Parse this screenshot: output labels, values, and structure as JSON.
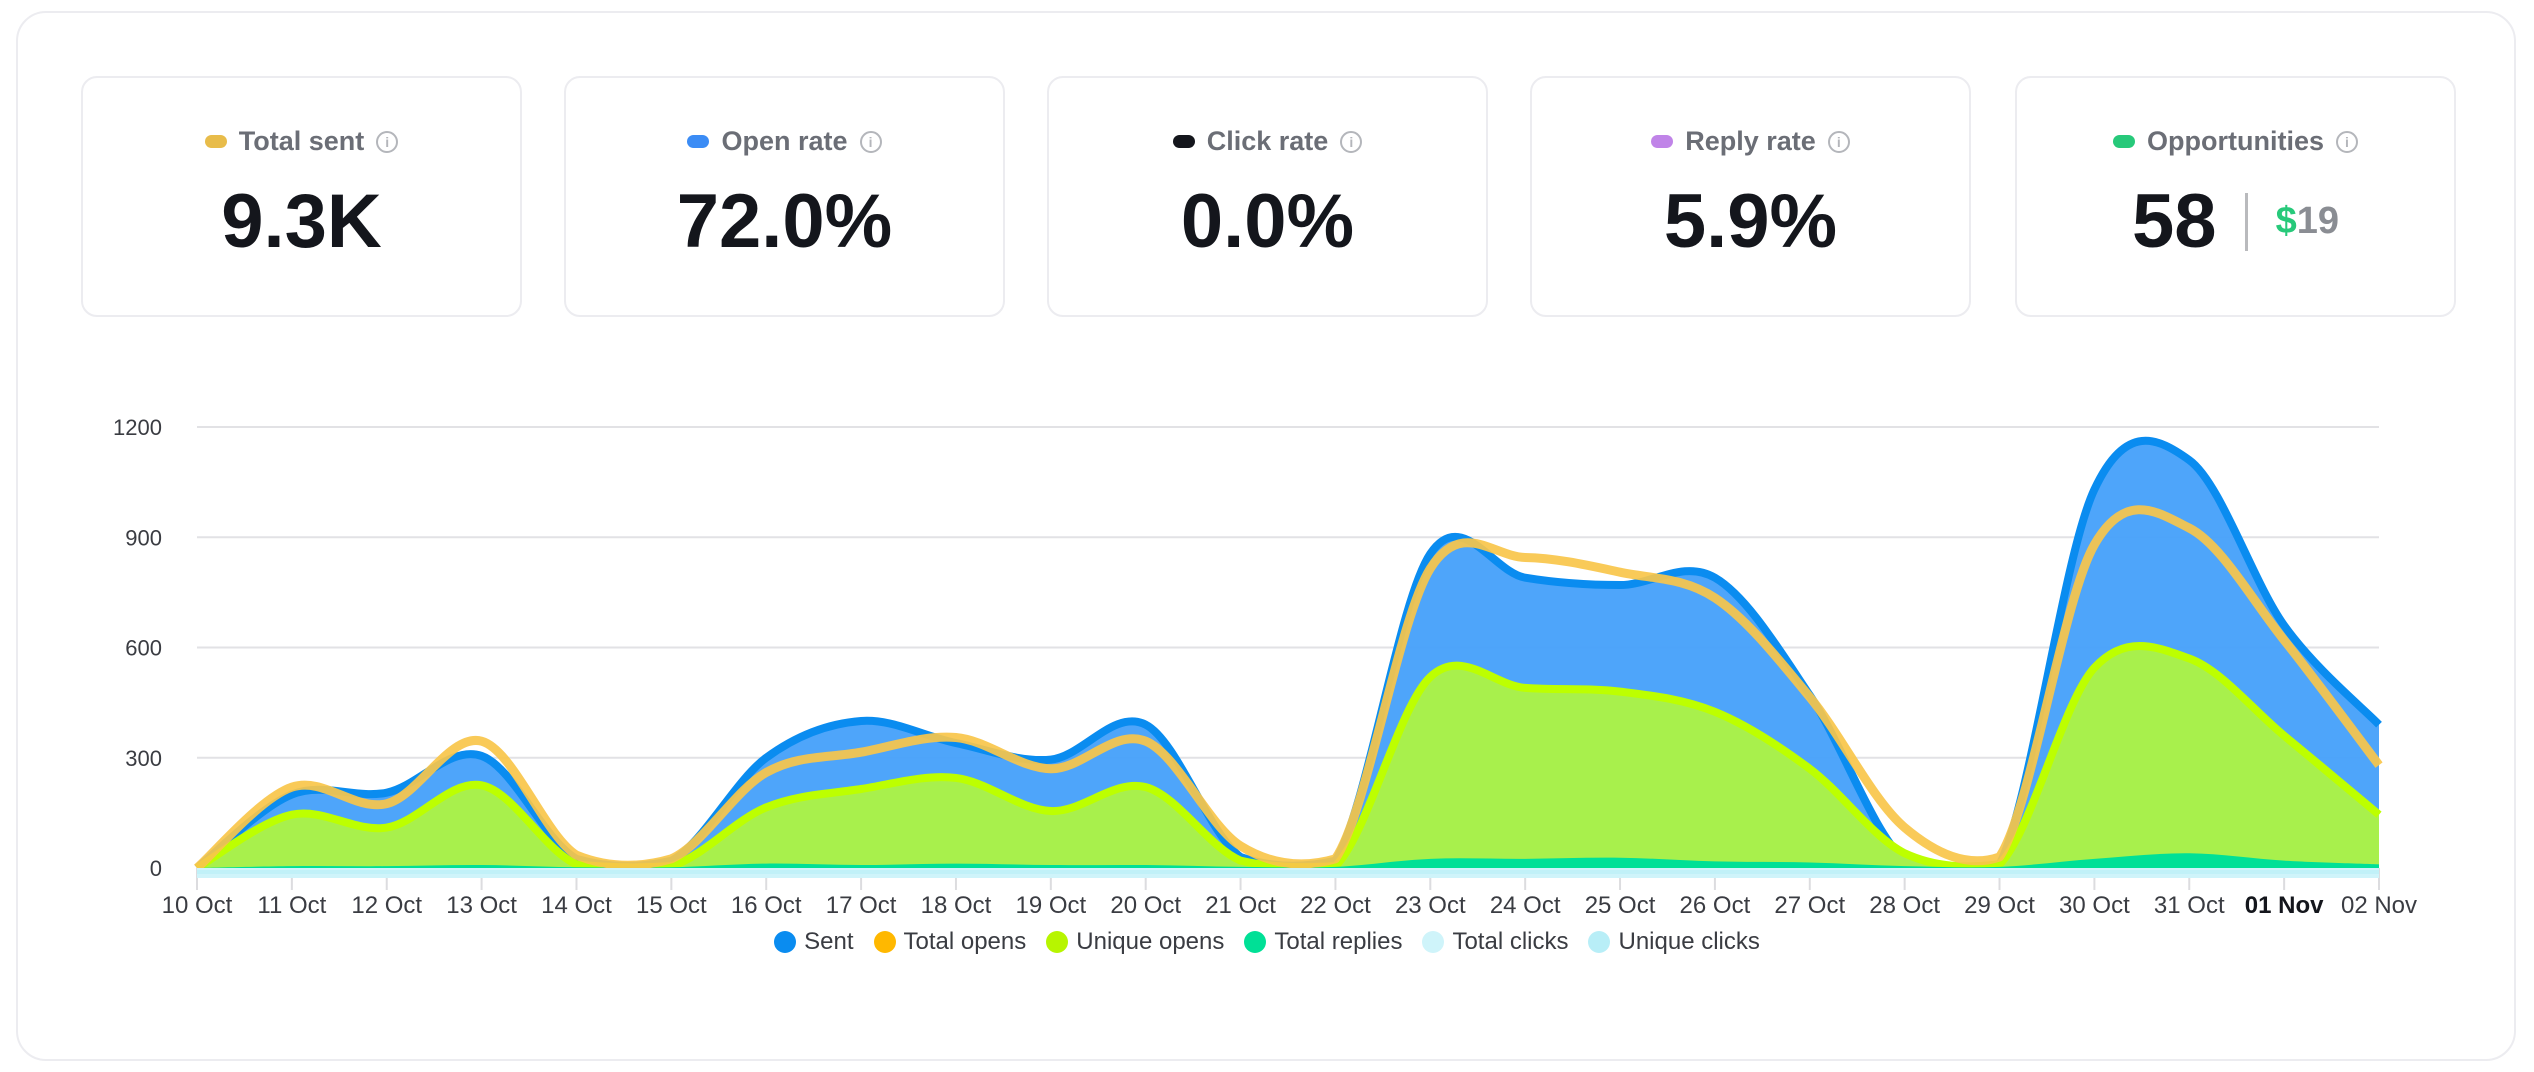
{
  "cards": [
    {
      "label": "Total sent",
      "value": "9.3K",
      "color": "#E8BC4A",
      "icon": "info-icon"
    },
    {
      "label": "Open rate",
      "value": "72.0%",
      "color": "#3B8CF5",
      "icon": "info-icon"
    },
    {
      "label": "Click rate",
      "value": "0.0%",
      "color": "#14161C",
      "icon": "info-icon"
    },
    {
      "label": "Reply rate",
      "value": "5.9%",
      "color": "#C084E8",
      "icon": "info-icon"
    },
    {
      "label": "Opportunities",
      "value": "58",
      "color": "#27C97A",
      "icon": "info-icon",
      "amount_currency": "$",
      "amount": "19"
    }
  ],
  "info_glyph": "i",
  "chart_data": {
    "type": "area",
    "categories": [
      "10 Oct",
      "11 Oct",
      "12 Oct",
      "13 Oct",
      "14 Oct",
      "15 Oct",
      "16 Oct",
      "17 Oct",
      "18 Oct",
      "19 Oct",
      "20 Oct",
      "21 Oct",
      "22 Oct",
      "23 Oct",
      "24 Oct",
      "25 Oct",
      "26 Oct",
      "27 Oct",
      "28 Oct",
      "29 Oct",
      "30 Oct",
      "31 Oct",
      "01 Nov",
      "02 Nov"
    ],
    "highlighted_category": "01 Nov",
    "ylim": [
      0,
      1200
    ],
    "yticks": [
      0,
      300,
      600,
      900,
      1200
    ],
    "grid": true,
    "legend": "bottom",
    "series": [
      {
        "name": "Sent",
        "color": "#0A8CF0",
        "fill": "#44A0FA",
        "values": [
          0,
          200,
          205,
          305,
          25,
          20,
          300,
          400,
          340,
          295,
          390,
          30,
          20,
          855,
          790,
          770,
          790,
          470,
          20,
          10,
          1030,
          1110,
          660,
          390
        ]
      },
      {
        "name": "Total opens",
        "color": "#F9C54A",
        "legend_color": "#FFB800",
        "values": [
          0,
          220,
          175,
          345,
          35,
          25,
          260,
          315,
          355,
          270,
          345,
          60,
          25,
          815,
          845,
          805,
          735,
          465,
          110,
          30,
          880,
          925,
          620,
          280
        ]
      },
      {
        "name": "Unique opens",
        "color": "#BDFF00",
        "fill": "#A8F04C",
        "legend_color": "#B7F500",
        "values": [
          0,
          145,
          110,
          225,
          10,
          5,
          165,
          215,
          245,
          155,
          220,
          20,
          5,
          520,
          490,
          480,
          425,
          270,
          40,
          10,
          545,
          570,
          360,
          145
        ]
      },
      {
        "name": "Total replies",
        "color": "#00E096",
        "fill": "#00E096",
        "values": [
          0,
          5,
          5,
          8,
          2,
          2,
          12,
          8,
          12,
          8,
          8,
          3,
          3,
          25,
          25,
          28,
          18,
          15,
          5,
          3,
          25,
          40,
          20,
          10
        ]
      },
      {
        "name": "Total clicks",
        "color": "#CFF4FA",
        "values": [
          0,
          0,
          0,
          0,
          0,
          0,
          0,
          0,
          0,
          0,
          0,
          0,
          0,
          0,
          0,
          0,
          0,
          0,
          0,
          0,
          0,
          0,
          0,
          0
        ]
      },
      {
        "name": "Unique clicks",
        "color": "#B8EEF7",
        "values": [
          0,
          0,
          0,
          0,
          0,
          0,
          0,
          0,
          0,
          0,
          0,
          0,
          0,
          0,
          0,
          0,
          0,
          0,
          0,
          0,
          0,
          0,
          0,
          0
        ]
      }
    ]
  }
}
